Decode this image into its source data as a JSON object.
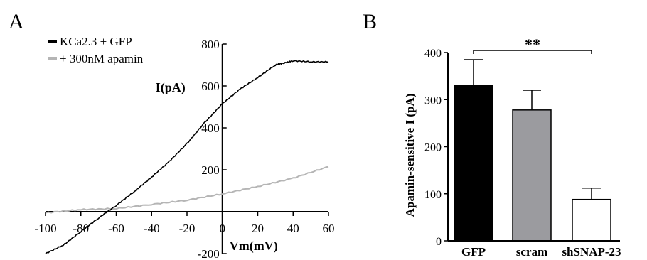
{
  "panel_labels": {
    "a": "A",
    "b": "B"
  },
  "chart_data": [
    {
      "type": "line",
      "panel": "A",
      "xlabel": "Vm(mV)",
      "ylabel": "I(pA)",
      "xlim": [
        -100,
        60
      ],
      "ylim": [
        -200,
        800
      ],
      "xticks": [
        -100,
        -80,
        -60,
        -40,
        -20,
        0,
        20,
        40,
        60
      ],
      "yticks": [
        -200,
        200,
        400,
        600,
        800
      ],
      "legend_position": "top-left",
      "series": [
        {
          "name": "KCa2.3 + GFP",
          "color": "#000000",
          "x": [
            -100,
            -90,
            -80,
            -70,
            -60,
            -50,
            -40,
            -30,
            -20,
            -10,
            0,
            10,
            20,
            30,
            35,
            40,
            50,
            60
          ],
          "y": [
            -200,
            -160,
            -95,
            -30,
            30,
            95,
            165,
            240,
            325,
            425,
            515,
            585,
            640,
            700,
            710,
            720,
            715,
            715
          ]
        },
        {
          "name": "+ 300nM apamin",
          "color": "#b5b5b5",
          "x": [
            -100,
            -80,
            -60,
            -40,
            -20,
            0,
            20,
            40,
            60
          ],
          "y": [
            -5,
            10,
            15,
            35,
            55,
            85,
            120,
            160,
            215
          ]
        }
      ]
    },
    {
      "type": "bar",
      "panel": "B",
      "ylabel": "Apamin-sensitive I  (pA)",
      "ylim": [
        0,
        400
      ],
      "yticks": [
        0,
        100,
        200,
        300,
        400
      ],
      "categories": [
        "GFP",
        "scram",
        "shSNAP-23"
      ],
      "values": [
        330,
        278,
        88
      ],
      "errors": [
        55,
        42,
        24
      ],
      "colors": [
        "#000000",
        "#9b9b9f",
        "#ffffff"
      ],
      "significance": {
        "from": "GFP",
        "to": "shSNAP-23",
        "label": "**"
      }
    }
  ]
}
